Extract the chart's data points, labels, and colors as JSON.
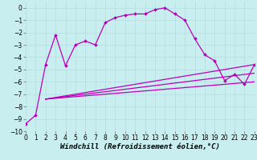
{
  "xlabel": "Windchill (Refroidissement éolien,°C)",
  "bg_color": "#c8eef0",
  "grid_color": "#b8e0e2",
  "line_color": "#bb00bb",
  "xlim": [
    0,
    23
  ],
  "ylim": [
    -10,
    0.5
  ],
  "xticks": [
    0,
    1,
    2,
    3,
    4,
    5,
    6,
    7,
    8,
    9,
    10,
    11,
    12,
    13,
    14,
    15,
    16,
    17,
    18,
    19,
    20,
    21,
    22,
    23
  ],
  "yticks": [
    0,
    -1,
    -2,
    -3,
    -4,
    -5,
    -6,
    -7,
    -8,
    -9,
    -10
  ],
  "series_wavy_x": [
    0,
    1,
    2,
    3,
    4,
    5,
    6,
    7,
    8,
    9,
    10,
    11,
    12,
    13,
    14,
    15,
    16,
    17,
    18,
    19,
    20,
    21,
    22,
    23
  ],
  "series_wavy_y": [
    -9.4,
    -8.7,
    -4.6,
    -2.2,
    -4.7,
    -3.0,
    -2.7,
    -3.0,
    -1.2,
    -0.8,
    -0.6,
    -0.5,
    -0.5,
    -0.15,
    0.0,
    -0.5,
    -1.0,
    -2.5,
    -3.8,
    -4.3,
    -5.9,
    -5.4,
    -6.2,
    -4.6
  ],
  "series_line1_x": [
    2,
    23
  ],
  "series_line1_y": [
    -7.4,
    -4.6
  ],
  "series_line2_x": [
    2,
    23
  ],
  "series_line2_y": [
    -7.4,
    -5.3
  ],
  "series_line3_x": [
    2,
    23
  ],
  "series_line3_y": [
    -7.4,
    -6.0
  ],
  "xlabel_fontsize": 6.5,
  "tick_fontsize": 5.5
}
